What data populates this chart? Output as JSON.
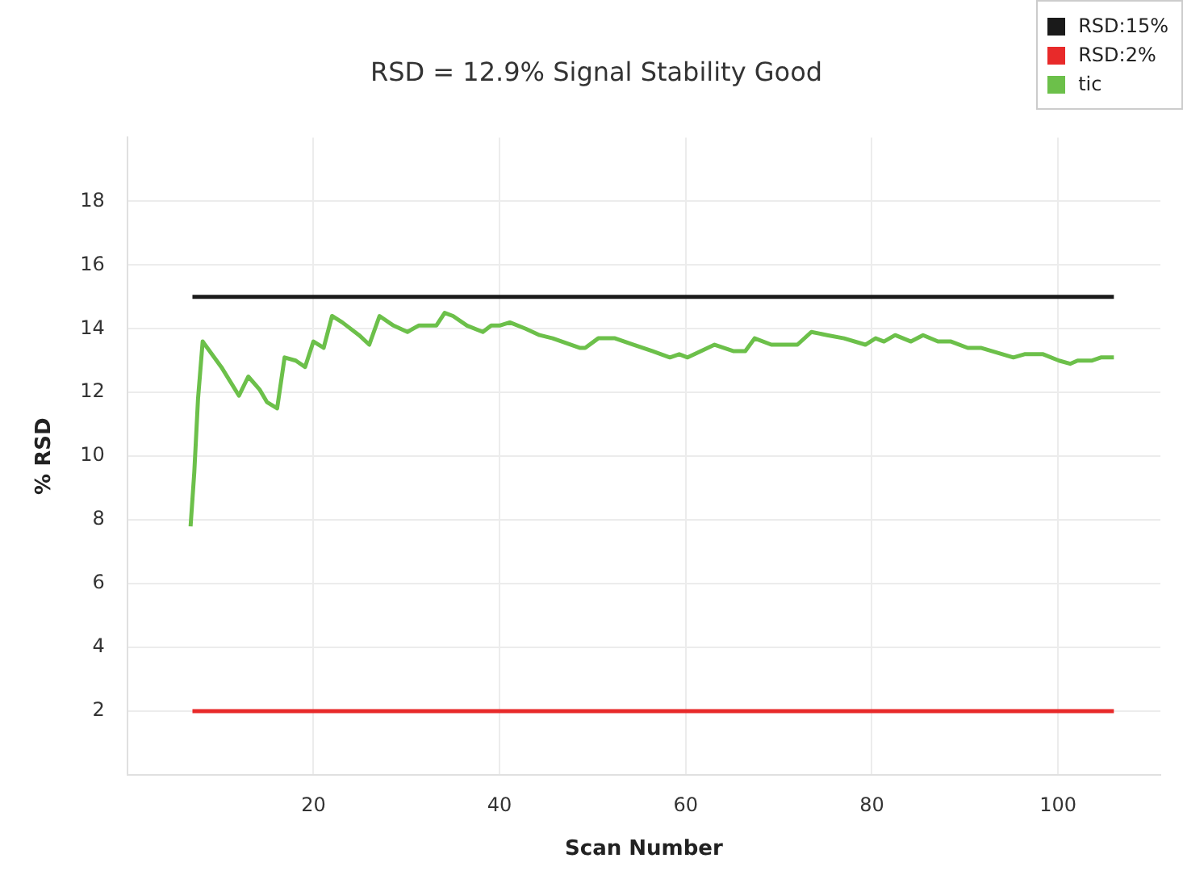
{
  "chart_data": {
    "type": "line",
    "title": "RSD = 12.9% Signal Stability Good",
    "xlabel": "Scan Number",
    "ylabel": "% RSD",
    "xlim": [
      0,
      111
    ],
    "xticks": [
      20,
      40,
      60,
      80,
      100
    ],
    "ylim": [
      0,
      20
    ],
    "yticks": [
      2,
      4,
      6,
      8,
      10,
      12,
      14,
      16,
      18
    ],
    "grid": true,
    "legend": "top right",
    "marker": "none",
    "line_style": "solid",
    "series": [
      {
        "name": "RSD:15%",
        "color": "#1a1a1a",
        "x": [
          7,
          106
        ],
        "values": [
          15,
          15
        ]
      },
      {
        "name": "RSD:2%",
        "color": "#e82a2a",
        "x": [
          7,
          106
        ],
        "values": [
          2,
          2
        ]
      },
      {
        "name": "tic",
        "color": "#6cc04a",
        "x": [
          6.8,
          7.2,
          7.6,
          8.1,
          10.1,
          12.0,
          13.0,
          14.2,
          15.0,
          16.1,
          16.9,
          18.1,
          19.1,
          20.0,
          21.1,
          22.0,
          23.1,
          24.9,
          26.0,
          27.1,
          28.6,
          30.1,
          31.3,
          32.4,
          33.2,
          34.1,
          35.0,
          36.5,
          38.2,
          39.1,
          40.0,
          41.1,
          42.8,
          44.3,
          45.7,
          48.6,
          49.2,
          50.6,
          52.4,
          54.4,
          56.4,
          58.3,
          59.3,
          60.2,
          63.1,
          65.1,
          66.4,
          67.4,
          69.2,
          72.0,
          73.5,
          75.2,
          77.0,
          79.3,
          80.4,
          81.3,
          82.5,
          84.2,
          85.5,
          87.1,
          88.5,
          90.3,
          91.7,
          95.2,
          96.4,
          98.4,
          100.1,
          101.3,
          102.1,
          103.6,
          104.6,
          105.3,
          106.0
        ],
        "values": [
          7.8,
          9.5,
          11.8,
          13.6,
          12.8,
          11.9,
          12.5,
          12.1,
          11.7,
          11.5,
          13.1,
          13.0,
          12.8,
          13.6,
          13.4,
          14.4,
          14.2,
          13.8,
          13.5,
          14.4,
          14.1,
          13.9,
          14.1,
          14.1,
          14.1,
          14.5,
          14.4,
          14.1,
          13.9,
          14.1,
          14.1,
          14.2,
          14.0,
          13.8,
          13.7,
          13.4,
          13.4,
          13.7,
          13.7,
          13.5,
          13.3,
          13.1,
          13.2,
          13.1,
          13.5,
          13.3,
          13.3,
          13.7,
          13.5,
          13.5,
          13.9,
          13.8,
          13.7,
          13.5,
          13.7,
          13.6,
          13.8,
          13.6,
          13.8,
          13.6,
          13.6,
          13.4,
          13.4,
          13.1,
          13.2,
          13.2,
          13.0,
          12.9,
          13.0,
          13.0,
          13.1,
          13.1,
          13.1
        ]
      }
    ]
  }
}
